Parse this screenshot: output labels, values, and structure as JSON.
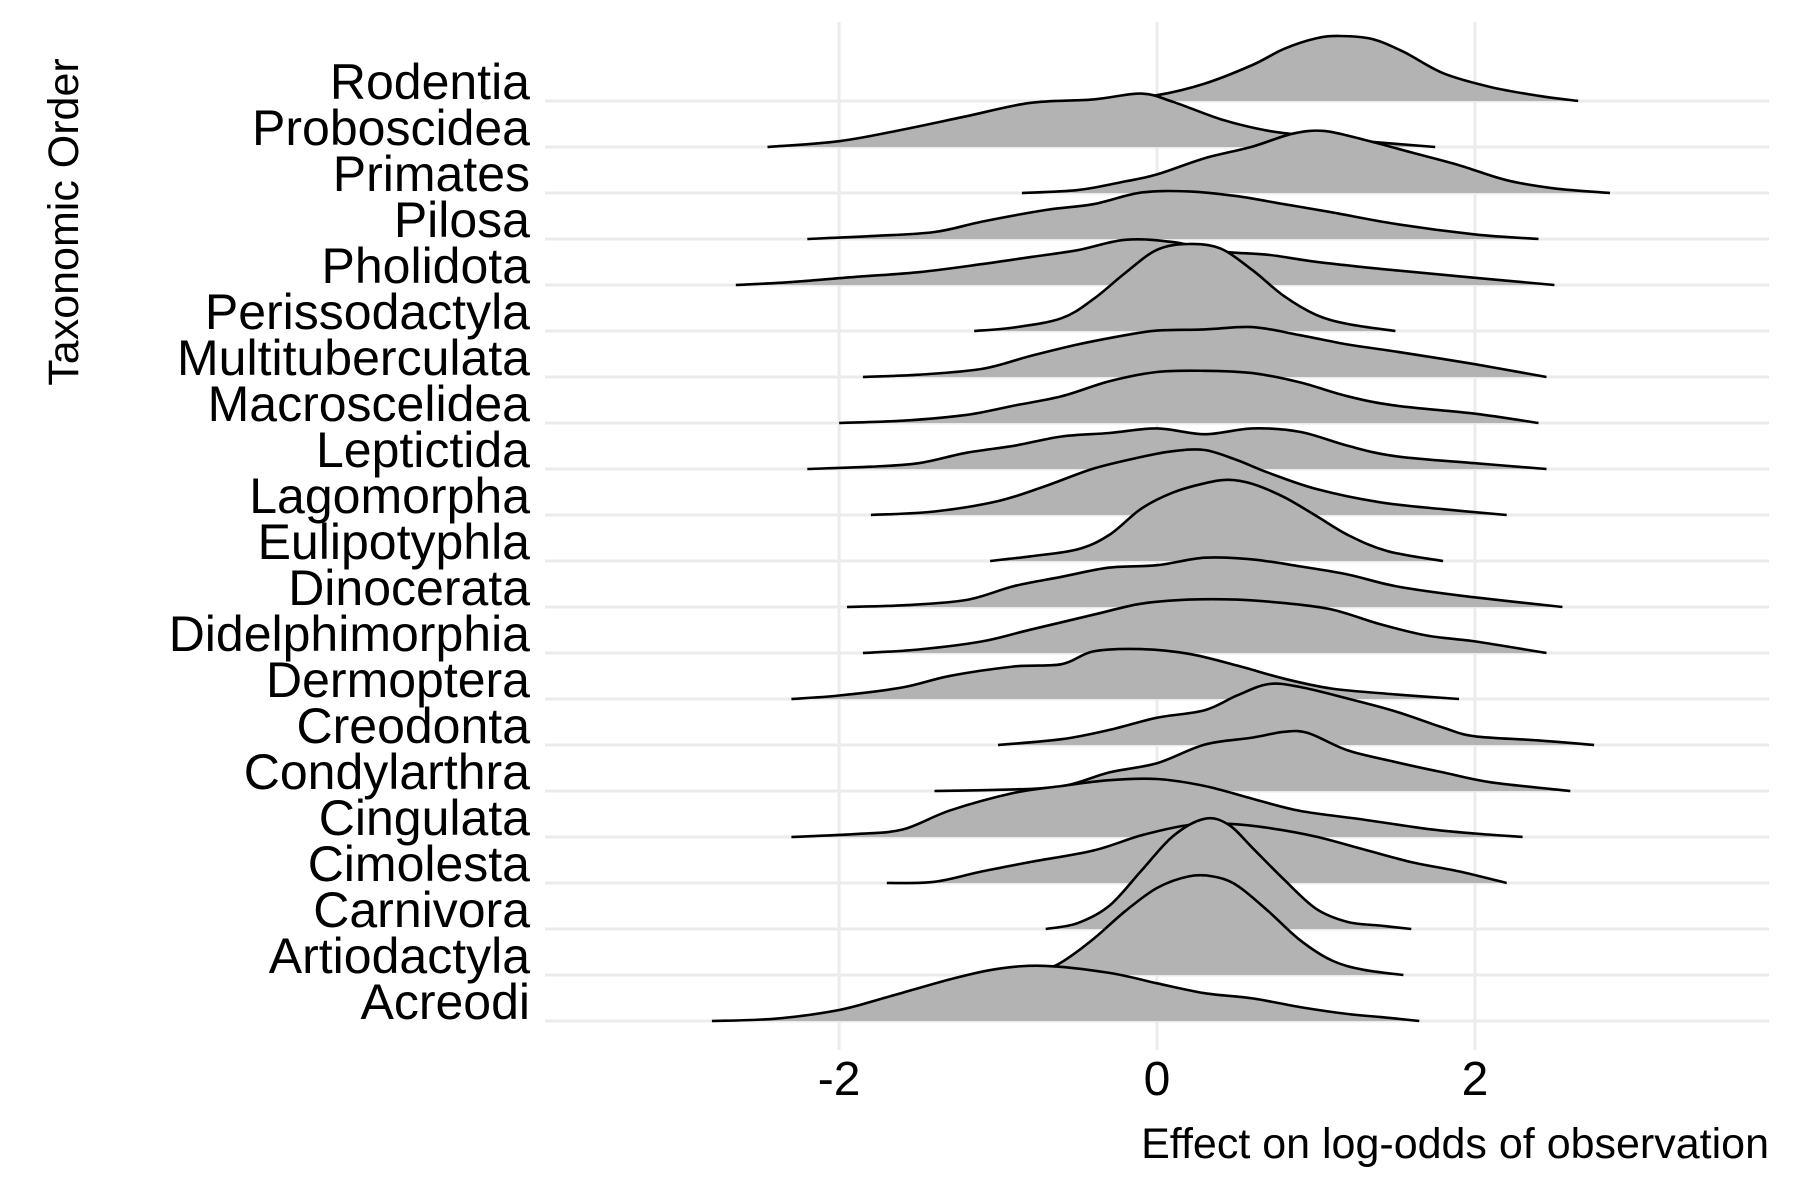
{
  "chart_data": {
    "type": "ridgeline",
    "xlabel": "Effect on log-odds of observation",
    "ylabel": "Taxonomic Order",
    "xlim": [
      -3.85,
      3.85
    ],
    "x_ticks": [
      -2,
      0,
      2
    ],
    "x_tick_labels": [
      "-2",
      "0",
      "2"
    ],
    "grid": true,
    "legend": "none",
    "fill_color": "#b3b3b3",
    "line_color": "#000000",
    "grid_color": "#ebebeb",
    "categories": [
      "Acreodi",
      "Artiodactyla",
      "Carnivora",
      "Cimolesta",
      "Cingulata",
      "Condylarthra",
      "Creodonta",
      "Dermoptera",
      "Didelphimorphia",
      "Dinocerata",
      "Eulipotyphla",
      "Lagomorpha",
      "Leptictida",
      "Macroscelidea",
      "Multituberculata",
      "Perissodactyla",
      "Pholidota",
      "Pilosa",
      "Primates",
      "Proboscidea",
      "Rodentia"
    ],
    "series": [
      {
        "category": "Acreodi",
        "x": [
          -2.8,
          -2.4,
          -2.0,
          -1.7,
          -1.3,
          -1.0,
          -0.7,
          -0.3,
          0.0,
          0.3,
          0.6,
          0.9,
          1.2,
          1.4,
          1.65
        ],
        "density": [
          0.0,
          0.04,
          0.19,
          0.41,
          0.72,
          0.9,
          0.95,
          0.83,
          0.65,
          0.48,
          0.39,
          0.24,
          0.12,
          0.07,
          0.0
        ]
      },
      {
        "category": "Artiodactyla",
        "x": [
          -0.85,
          -0.7,
          -0.6,
          -0.4,
          -0.2,
          0.0,
          0.2,
          0.35,
          0.5,
          0.7,
          0.9,
          1.1,
          1.3,
          1.55
        ],
        "density": [
          0.07,
          0.12,
          0.22,
          0.62,
          1.1,
          1.5,
          1.7,
          1.7,
          1.55,
          1.1,
          0.6,
          0.25,
          0.09,
          0.0
        ]
      },
      {
        "category": "Carnivora",
        "x": [
          -0.7,
          -0.5,
          -0.3,
          -0.1,
          0.1,
          0.3,
          0.45,
          0.6,
          0.8,
          1.0,
          1.2,
          1.4,
          1.6
        ],
        "density": [
          0.0,
          0.1,
          0.4,
          1.0,
          1.6,
          1.9,
          1.8,
          1.4,
          0.85,
          0.35,
          0.12,
          0.06,
          0.0
        ]
      },
      {
        "category": "Cimolesta",
        "x": [
          -1.7,
          -1.4,
          -1.1,
          -0.8,
          -0.4,
          -0.1,
          0.2,
          0.45,
          0.7,
          1.0,
          1.3,
          1.6,
          1.9,
          2.2
        ],
        "density": [
          0.0,
          0.02,
          0.2,
          0.36,
          0.56,
          0.82,
          1.0,
          1.02,
          0.95,
          0.8,
          0.58,
          0.36,
          0.2,
          0.0
        ]
      },
      {
        "category": "Cingulata",
        "x": [
          -2.3,
          -1.9,
          -1.6,
          -1.3,
          -0.9,
          -0.6,
          -0.3,
          0.0,
          0.3,
          0.6,
          0.9,
          1.3,
          1.7,
          2.0,
          2.3
        ],
        "density": [
          0.0,
          0.05,
          0.13,
          0.46,
          0.76,
          0.88,
          0.98,
          1.0,
          0.88,
          0.66,
          0.45,
          0.3,
          0.14,
          0.06,
          0.0
        ]
      },
      {
        "category": "Condylarthra",
        "x": [
          -1.4,
          -1.0,
          -0.6,
          -0.3,
          0.0,
          0.3,
          0.6,
          0.8,
          0.95,
          1.2,
          1.5,
          1.8,
          2.1,
          2.6
        ],
        "density": [
          0.0,
          0.02,
          0.08,
          0.32,
          0.48,
          0.8,
          0.92,
          1.02,
          1.0,
          0.7,
          0.5,
          0.32,
          0.15,
          0.0
        ]
      },
      {
        "category": "Creodonta",
        "x": [
          -1.0,
          -0.6,
          -0.3,
          0.0,
          0.3,
          0.5,
          0.7,
          0.9,
          1.2,
          1.5,
          1.8,
          2.0,
          2.4,
          2.75
        ],
        "density": [
          0.0,
          0.1,
          0.26,
          0.47,
          0.6,
          0.85,
          1.05,
          1.0,
          0.8,
          0.58,
          0.3,
          0.15,
          0.08,
          0.0
        ]
      },
      {
        "category": "Dermoptera",
        "x": [
          -2.3,
          -2.0,
          -1.6,
          -1.3,
          -0.9,
          -0.6,
          -0.4,
          -0.1,
          0.2,
          0.5,
          0.8,
          1.1,
          1.5,
          1.9
        ],
        "density": [
          0.0,
          0.06,
          0.2,
          0.4,
          0.56,
          0.6,
          0.82,
          0.86,
          0.78,
          0.58,
          0.35,
          0.18,
          0.08,
          0.0
        ]
      },
      {
        "category": "Didelphimorphia",
        "x": [
          -1.85,
          -1.5,
          -1.1,
          -0.8,
          -0.4,
          -0.1,
          0.2,
          0.5,
          0.8,
          1.1,
          1.4,
          1.7,
          2.0,
          2.45
        ],
        "density": [
          0.0,
          0.06,
          0.2,
          0.4,
          0.66,
          0.85,
          0.92,
          0.92,
          0.86,
          0.75,
          0.5,
          0.3,
          0.2,
          0.0
        ]
      },
      {
        "category": "Dinocerata",
        "x": [
          -1.95,
          -1.6,
          -1.2,
          -0.9,
          -0.6,
          -0.3,
          0.0,
          0.3,
          0.6,
          0.9,
          1.2,
          1.5,
          1.9,
          2.55
        ],
        "density": [
          0.0,
          0.03,
          0.12,
          0.36,
          0.52,
          0.68,
          0.72,
          0.85,
          0.82,
          0.7,
          0.56,
          0.36,
          0.2,
          0.0
        ]
      },
      {
        "category": "Eulipotyphla",
        "x": [
          -1.05,
          -0.8,
          -0.5,
          -0.3,
          -0.1,
          0.1,
          0.3,
          0.45,
          0.6,
          0.8,
          1.0,
          1.2,
          1.45,
          1.8
        ],
        "density": [
          0.0,
          0.08,
          0.2,
          0.45,
          0.9,
          1.18,
          1.34,
          1.4,
          1.33,
          1.1,
          0.78,
          0.45,
          0.17,
          0.0
        ]
      },
      {
        "category": "Lagomorpha",
        "x": [
          -1.8,
          -1.4,
          -1.0,
          -0.7,
          -0.4,
          -0.1,
          0.1,
          0.3,
          0.5,
          0.7,
          1.0,
          1.4,
          1.8,
          2.2
        ],
        "density": [
          0.0,
          0.06,
          0.24,
          0.5,
          0.8,
          1.0,
          1.1,
          1.12,
          0.95,
          0.73,
          0.45,
          0.22,
          0.1,
          0.0
        ]
      },
      {
        "category": "Leptictida",
        "x": [
          -2.2,
          -1.8,
          -1.5,
          -1.2,
          -0.9,
          -0.6,
          -0.3,
          0.0,
          0.3,
          0.6,
          0.9,
          1.2,
          1.5,
          2.0,
          2.45
        ],
        "density": [
          0.0,
          0.04,
          0.1,
          0.28,
          0.4,
          0.56,
          0.62,
          0.7,
          0.6,
          0.7,
          0.64,
          0.4,
          0.22,
          0.1,
          0.0
        ]
      },
      {
        "category": "Macroscelidea",
        "x": [
          -2.0,
          -1.6,
          -1.2,
          -0.9,
          -0.6,
          -0.3,
          0.0,
          0.3,
          0.6,
          0.9,
          1.2,
          1.5,
          2.0,
          2.4
        ],
        "density": [
          0.0,
          0.04,
          0.14,
          0.3,
          0.46,
          0.72,
          0.88,
          0.9,
          0.86,
          0.7,
          0.46,
          0.3,
          0.16,
          0.0
        ]
      },
      {
        "category": "Multituberculata",
        "x": [
          -1.85,
          -1.5,
          -1.1,
          -0.8,
          -0.5,
          -0.2,
          0.0,
          0.3,
          0.6,
          0.9,
          1.2,
          1.5,
          2.0,
          2.45
        ],
        "density": [
          0.0,
          0.04,
          0.14,
          0.36,
          0.56,
          0.72,
          0.8,
          0.82,
          0.86,
          0.72,
          0.56,
          0.44,
          0.22,
          0.0
        ]
      },
      {
        "category": "Perissodactyla",
        "x": [
          -1.15,
          -0.9,
          -0.6,
          -0.4,
          -0.2,
          0.0,
          0.2,
          0.4,
          0.6,
          0.8,
          1.0,
          1.2,
          1.5
        ],
        "density": [
          0.0,
          0.06,
          0.22,
          0.55,
          1.0,
          1.4,
          1.5,
          1.42,
          1.05,
          0.6,
          0.28,
          0.12,
          0.0
        ]
      },
      {
        "category": "Pholidota",
        "x": [
          -2.65,
          -2.3,
          -1.9,
          -1.5,
          -1.1,
          -0.8,
          -0.5,
          -0.2,
          0.1,
          0.4,
          0.7,
          1.0,
          1.4,
          1.9,
          2.5
        ],
        "density": [
          0.0,
          0.05,
          0.14,
          0.22,
          0.36,
          0.48,
          0.6,
          0.78,
          0.74,
          0.58,
          0.52,
          0.4,
          0.28,
          0.15,
          0.0
        ]
      },
      {
        "category": "Pilosa",
        "x": [
          -2.2,
          -1.8,
          -1.4,
          -1.1,
          -0.7,
          -0.4,
          -0.1,
          0.2,
          0.5,
          0.8,
          1.1,
          1.5,
          2.0,
          2.4
        ],
        "density": [
          0.0,
          0.05,
          0.12,
          0.3,
          0.5,
          0.6,
          0.8,
          0.82,
          0.74,
          0.6,
          0.46,
          0.26,
          0.08,
          0.0
        ]
      },
      {
        "category": "Primates",
        "x": [
          -0.85,
          -0.5,
          -0.2,
          0.0,
          0.3,
          0.6,
          0.85,
          1.05,
          1.3,
          1.6,
          1.9,
          2.2,
          2.5,
          2.85
        ],
        "density": [
          0.0,
          0.05,
          0.2,
          0.32,
          0.6,
          0.8,
          1.02,
          1.07,
          0.92,
          0.7,
          0.48,
          0.22,
          0.08,
          0.0
        ]
      },
      {
        "category": "Proboscidea",
        "x": [
          -2.45,
          -2.0,
          -1.6,
          -1.2,
          -0.8,
          -0.4,
          -0.1,
          0.1,
          0.4,
          0.7,
          1.0,
          1.3,
          1.75
        ],
        "density": [
          0.0,
          0.1,
          0.3,
          0.53,
          0.76,
          0.82,
          0.92,
          0.78,
          0.48,
          0.28,
          0.18,
          0.1,
          0.0
        ]
      },
      {
        "category": "Rodentia",
        "x": [
          -0.35,
          0.0,
          0.3,
          0.6,
          0.8,
          1.0,
          1.15,
          1.35,
          1.55,
          1.8,
          2.1,
          2.4,
          2.65
        ],
        "density": [
          0.0,
          0.1,
          0.3,
          0.62,
          0.9,
          1.08,
          1.12,
          1.07,
          0.85,
          0.48,
          0.24,
          0.09,
          0.0
        ]
      }
    ]
  }
}
